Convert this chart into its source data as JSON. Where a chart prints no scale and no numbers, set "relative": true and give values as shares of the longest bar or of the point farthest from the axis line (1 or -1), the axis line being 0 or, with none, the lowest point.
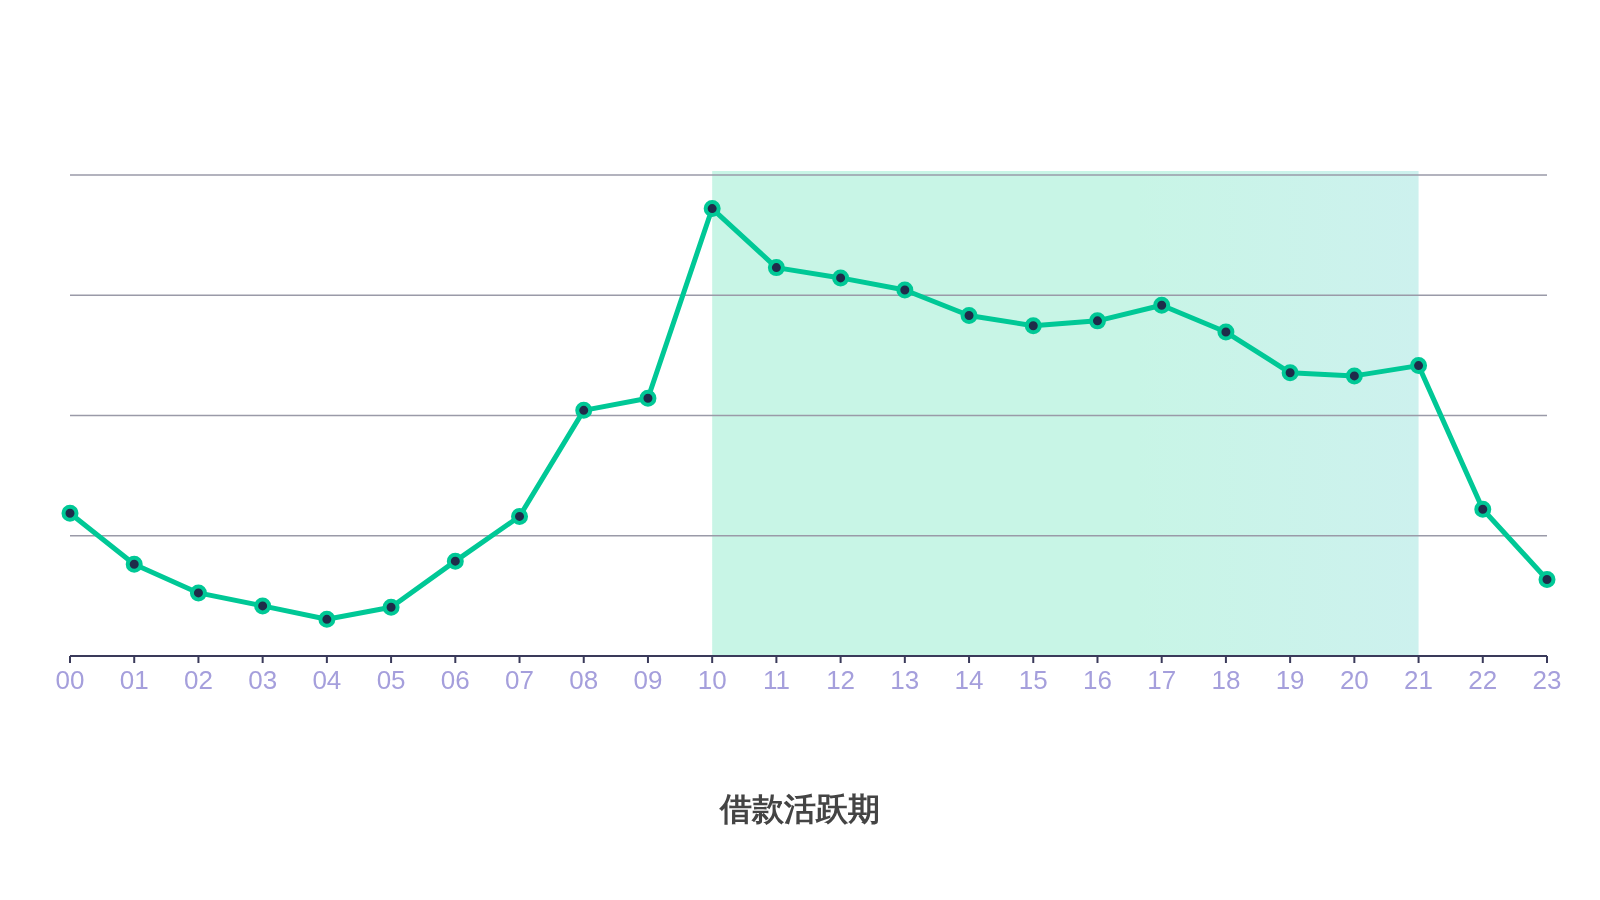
{
  "chart_data": {
    "type": "line",
    "relative": true,
    "categories": [
      "00",
      "01",
      "02",
      "03",
      "04",
      "05",
      "06",
      "07",
      "08",
      "09",
      "10",
      "11",
      "12",
      "13",
      "14",
      "15",
      "16",
      "17",
      "18",
      "19",
      "20",
      "21",
      "22",
      "23"
    ],
    "series": [
      {
        "color": "#00c896",
        "values": [
          0.319,
          0.205,
          0.141,
          0.112,
          0.082,
          0.109,
          0.212,
          0.312,
          0.549,
          0.576,
          1,
          0.868,
          0.845,
          0.818,
          0.761,
          0.738,
          0.749,
          0.784,
          0.724,
          0.633,
          0.626,
          0.649,
          0.328,
          0.171
        ]
      }
    ],
    "marker": "circle",
    "line_style": "solid",
    "grid": "y",
    "annotations": [
      "借款活跃期"
    ],
    "bands": [
      {
        "axis": "x",
        "from": "10",
        "to": "21",
        "color": "#c8f5e6"
      }
    ]
  }
}
